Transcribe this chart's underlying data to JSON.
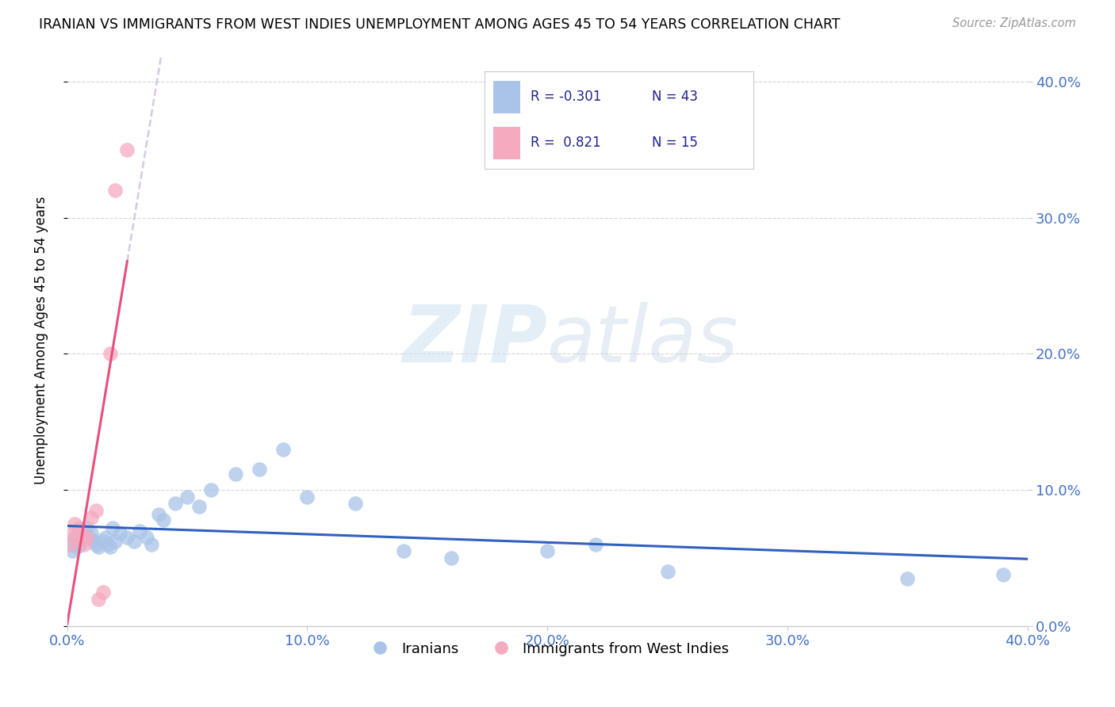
{
  "title": "IRANIAN VS IMMIGRANTS FROM WEST INDIES UNEMPLOYMENT AMONG AGES 45 TO 54 YEARS CORRELATION CHART",
  "source": "Source: ZipAtlas.com",
  "ylabel": "Unemployment Among Ages 45 to 54 years",
  "watermark_zip": "ZIP",
  "watermark_atlas": "atlas",
  "legend_label1": "Iranians",
  "legend_label2": "Immigrants from West Indies",
  "r1": -0.301,
  "n1": 43,
  "r2": 0.821,
  "n2": 15,
  "blue_color": "#aac4e8",
  "pink_color": "#f5aabf",
  "line_blue": "#3060c0",
  "line_pink": "#e8507a",
  "line_dashed_color": "#ccbbdd",
  "tick_color": "#4472c4",
  "xlim": [
    0.0,
    0.4
  ],
  "ylim": [
    0.0,
    0.42
  ],
  "xticks": [
    0.0,
    0.1,
    0.2,
    0.3,
    0.4
  ],
  "yticks_right": [
    0.0,
    0.1,
    0.2,
    0.3,
    0.4
  ],
  "iranians_x": [
    0.001,
    0.002,
    0.003,
    0.004,
    0.005,
    0.006,
    0.007,
    0.008,
    0.009,
    0.01,
    0.011,
    0.012,
    0.013,
    0.015,
    0.016,
    0.017,
    0.018,
    0.019,
    0.02,
    0.022,
    0.025,
    0.028,
    0.03,
    0.033,
    0.035,
    0.038,
    0.04,
    0.045,
    0.05,
    0.055,
    0.06,
    0.07,
    0.08,
    0.09,
    0.1,
    0.12,
    0.14,
    0.16,
    0.2,
    0.22,
    0.25,
    0.35,
    0.39
  ],
  "iranians_y": [
    0.06,
    0.055,
    0.065,
    0.058,
    0.06,
    0.062,
    0.07,
    0.072,
    0.065,
    0.068,
    0.063,
    0.06,
    0.058,
    0.062,
    0.065,
    0.06,
    0.058,
    0.072,
    0.062,
    0.068,
    0.065,
    0.062,
    0.07,
    0.065,
    0.06,
    0.082,
    0.078,
    0.09,
    0.095,
    0.088,
    0.1,
    0.112,
    0.115,
    0.13,
    0.095,
    0.09,
    0.055,
    0.05,
    0.055,
    0.06,
    0.04,
    0.035,
    0.038
  ],
  "west_indies_x": [
    0.001,
    0.002,
    0.003,
    0.004,
    0.005,
    0.006,
    0.007,
    0.008,
    0.01,
    0.012,
    0.013,
    0.015,
    0.018,
    0.02,
    0.025
  ],
  "west_indies_y": [
    0.06,
    0.068,
    0.075,
    0.065,
    0.072,
    0.065,
    0.06,
    0.065,
    0.08,
    0.085,
    0.02,
    0.025,
    0.2,
    0.32,
    0.35
  ]
}
